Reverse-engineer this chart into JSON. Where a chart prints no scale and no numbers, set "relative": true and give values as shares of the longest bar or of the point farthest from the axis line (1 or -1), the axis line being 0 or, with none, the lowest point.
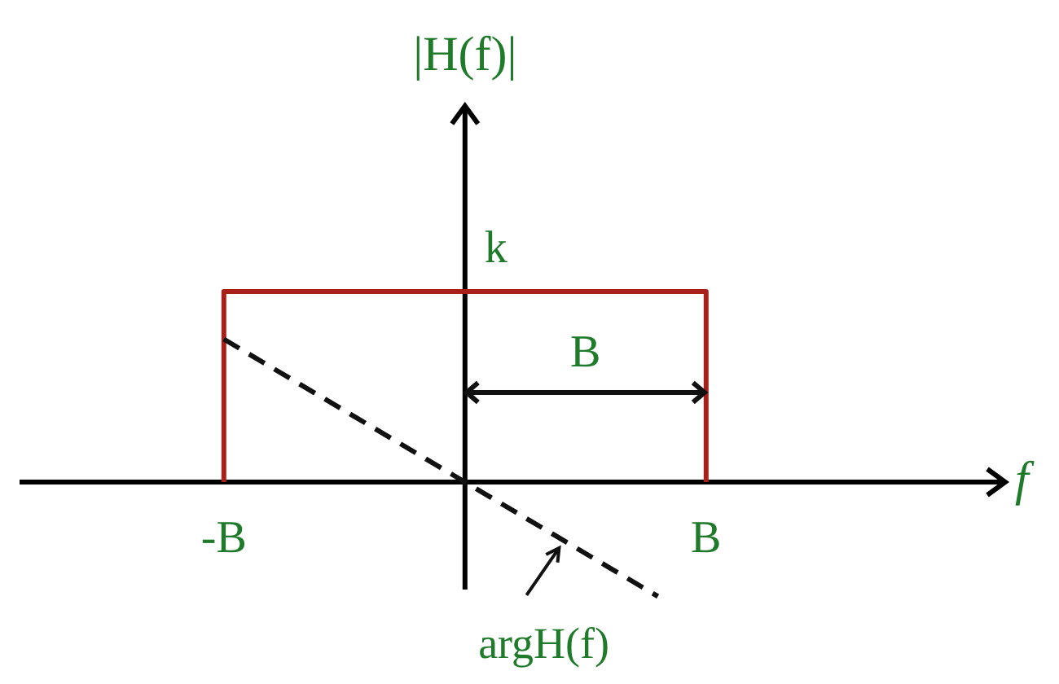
{
  "chart_data": {
    "type": "line",
    "relative": true,
    "xlabel": "f",
    "ylabel": "|H(f)|",
    "tick_labels": "x",
    "line_style": "solid",
    "categories": [
      null,
      null,
      null,
      null,
      "-B",
      null,
      null,
      null,
      null,
      null,
      null,
      null,
      null,
      null,
      "B",
      null,
      null,
      null,
      null,
      null,
      null
    ],
    "series": [
      {
        "color": "#a8201a",
        "x": [
          "-B",
          "-B",
          "B",
          "B"
        ],
        "values": [
          0,
          1,
          1,
          0
        ]
      },
      {
        "name": "argH(f)",
        "color": "#111111",
        "line_style": "dashed",
        "values": [
          null,
          null,
          null,
          null,
          0.75,
          0.6,
          0.45,
          0.3,
          0.15,
          0,
          -0.15,
          -0.3,
          -0.45,
          -0.6,
          null,
          null,
          null,
          null,
          null,
          null,
          null
        ]
      }
    ],
    "annotations": [
      {
        "text": "k",
        "y": 1
      },
      "B"
    ]
  }
}
